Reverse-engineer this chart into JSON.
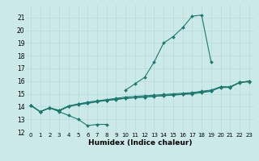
{
  "xlabel": "Humidex (Indice chaleur)",
  "xlim": [
    -0.5,
    23.5
  ],
  "ylim": [
    12,
    22
  ],
  "yticks": [
    12,
    13,
    14,
    15,
    16,
    17,
    18,
    19,
    20,
    21
  ],
  "xticks": [
    0,
    1,
    2,
    3,
    4,
    5,
    6,
    7,
    8,
    9,
    10,
    11,
    12,
    13,
    14,
    15,
    16,
    17,
    18,
    19,
    20,
    21,
    22,
    23
  ],
  "bg_color": "#cce9e9",
  "grid_color": "#b8d8d8",
  "line_color": "#1a7a6e",
  "line1_y": [
    14.1,
    13.6,
    13.9,
    13.6,
    13.3,
    13.0,
    12.5,
    12.6,
    12.6,
    null,
    15.3,
    15.8,
    16.3,
    17.5,
    19.0,
    19.5,
    20.2,
    21.1,
    21.2,
    17.5,
    null,
    null,
    null,
    null
  ],
  "line2_y": [
    14.1,
    13.6,
    13.9,
    13.7,
    14.05,
    14.2,
    14.3,
    14.4,
    14.5,
    14.6,
    14.65,
    14.7,
    14.75,
    14.8,
    14.85,
    14.9,
    14.95,
    15.0,
    15.1,
    15.2,
    15.55,
    15.55,
    15.9,
    16.0
  ],
  "line3_y": [
    14.1,
    13.6,
    13.9,
    13.7,
    14.05,
    14.2,
    14.35,
    14.45,
    14.55,
    14.65,
    14.75,
    14.8,
    14.85,
    14.9,
    14.95,
    15.0,
    15.05,
    15.1,
    15.2,
    15.3,
    15.55,
    15.55,
    15.9,
    16.0
  ],
  "line4_y": [
    14.1,
    13.6,
    13.9,
    13.65,
    14.0,
    14.15,
    14.25,
    14.38,
    14.48,
    14.55,
    14.65,
    14.7,
    14.75,
    14.82,
    14.88,
    14.93,
    14.98,
    15.05,
    15.15,
    15.25,
    15.5,
    15.5,
    15.88,
    15.95
  ],
  "markersize": 2.0,
  "linewidth": 0.8
}
